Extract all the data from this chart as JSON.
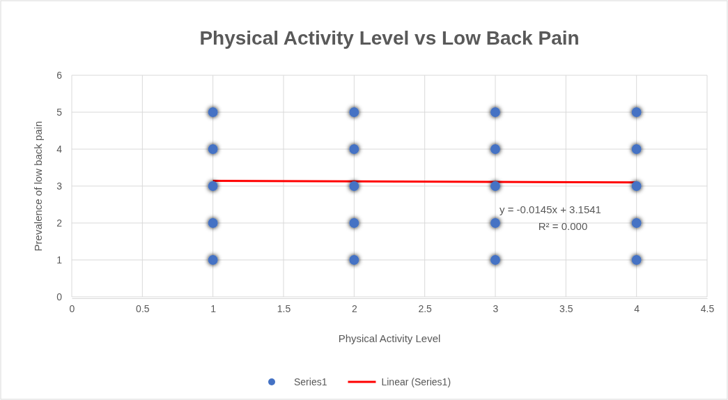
{
  "chart_data": {
    "type": "scatter",
    "title": "Physical Activity Level vs Low Back Pain",
    "xlabel": "Physical Activity Level",
    "ylabel": "Prevalence of low back pain",
    "xlim": [
      0,
      4.5
    ],
    "xticks": [
      0,
      0.5,
      1,
      1.5,
      2,
      2.5,
      3,
      3.5,
      4,
      4.5
    ],
    "ylim": [
      0,
      6
    ],
    "yticks": [
      0,
      1,
      2,
      3,
      4,
      5,
      6
    ],
    "grid": true,
    "legend": "bottom",
    "series": [
      {
        "name": "Series1",
        "marker": "circle",
        "color": "#4472c4",
        "x": [
          1,
          1,
          1,
          1,
          1,
          2,
          2,
          2,
          2,
          2,
          3,
          3,
          3,
          3,
          3,
          4,
          4,
          4,
          4,
          4
        ],
        "values": [
          1,
          2,
          3,
          4,
          5,
          1,
          2,
          3,
          4,
          5,
          1,
          2,
          3,
          4,
          5,
          1,
          2,
          3,
          4,
          5
        ]
      },
      {
        "name": "Linear (Series1)",
        "type": "line",
        "color": "#ff0000",
        "x": [
          1,
          4
        ],
        "values": [
          3.14,
          3.1
        ]
      }
    ],
    "annotations": [
      "y = -0.0145x + 3.1541",
      "R² = 0.000"
    ]
  }
}
